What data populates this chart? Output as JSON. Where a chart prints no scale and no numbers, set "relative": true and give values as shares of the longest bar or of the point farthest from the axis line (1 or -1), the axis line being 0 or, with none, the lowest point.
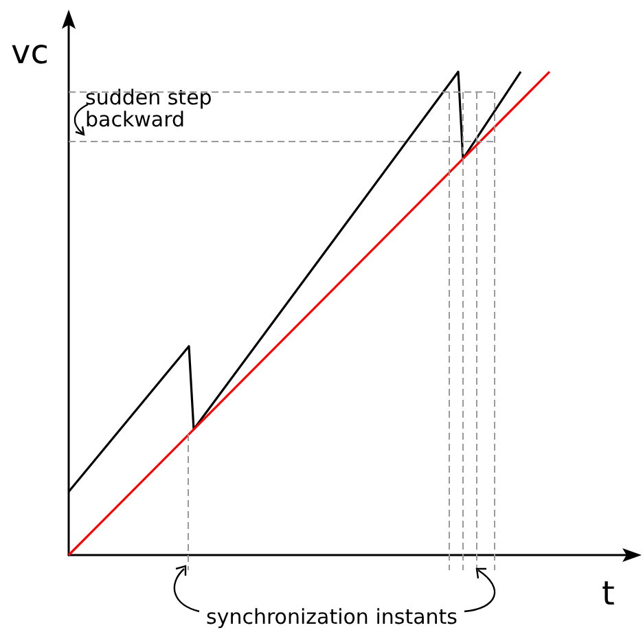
{
  "chart_data": {
    "type": "line",
    "relative": true,
    "xlabel": "t",
    "ylabel": "vc",
    "categories": [
      null,
      null,
      null,
      null,
      null,
      null,
      null,
      null,
      null,
      null,
      null,
      null,
      null,
      null,
      null,
      null,
      null,
      null,
      null,
      null,
      null,
      null,
      null,
      null,
      null,
      null,
      null,
      null,
      null,
      null,
      null,
      null,
      null,
      null,
      null,
      null,
      null,
      null,
      null,
      null,
      null,
      null,
      null,
      null,
      null,
      null,
      null,
      null,
      null,
      null,
      null,
      null,
      null,
      null,
      null,
      null,
      null,
      null,
      null,
      null,
      null,
      null,
      null,
      null,
      null,
      null,
      null,
      null,
      null,
      null,
      null,
      null,
      null,
      null,
      null,
      null,
      null,
      null,
      null,
      null,
      null,
      null,
      null,
      null,
      null,
      null,
      null,
      null,
      null,
      null,
      null,
      null,
      null,
      null,
      null,
      null,
      null,
      null,
      null,
      null,
      null,
      null,
      null,
      null,
      null,
      null,
      null,
      null,
      null,
      null,
      null,
      null,
      null,
      null,
      null,
      null,
      null,
      null,
      null
    ],
    "series": [
      {
        "color": "#000000",
        "values": [
          0.131,
          null,
          null,
          null,
          null,
          null,
          null,
          null,
          null,
          null,
          null,
          null,
          null,
          null,
          null,
          null,
          null,
          null,
          null,
          null,
          null,
          null,
          null,
          null,
          null,
          0.432,
          0.26,
          null,
          null,
          null,
          null,
          null,
          null,
          null,
          null,
          null,
          null,
          null,
          null,
          null,
          null,
          null,
          null,
          null,
          null,
          null,
          null,
          null,
          null,
          null,
          null,
          null,
          null,
          null,
          null,
          null,
          null,
          null,
          null,
          null,
          null,
          null,
          null,
          null,
          null,
          null,
          null,
          null,
          null,
          null,
          null,
          null,
          null,
          null,
          null,
          null,
          null,
          null,
          null,
          null,
          null,
          1,
          0.82,
          null,
          null,
          null,
          null,
          null,
          null,
          null,
          null,
          null,
          null,
          null,
          1,
          null,
          null,
          null,
          null,
          null,
          null,
          null,
          null,
          null,
          null,
          null,
          null,
          null,
          null,
          null,
          null,
          null,
          null,
          null,
          null,
          null,
          null,
          null,
          null
        ]
      },
      {
        "color": "#ff0000",
        "values": [
          0,
          null,
          null,
          null,
          null,
          null,
          null,
          null,
          null,
          null,
          null,
          null,
          null,
          null,
          null,
          null,
          null,
          null,
          null,
          null,
          null,
          null,
          null,
          null,
          null,
          null,
          null,
          null,
          null,
          null,
          null,
          null,
          null,
          null,
          null,
          null,
          null,
          null,
          null,
          null,
          null,
          null,
          null,
          null,
          null,
          null,
          null,
          null,
          null,
          null,
          null,
          null,
          null,
          null,
          null,
          null,
          null,
          null,
          null,
          null,
          null,
          null,
          null,
          null,
          null,
          null,
          null,
          null,
          null,
          null,
          null,
          null,
          null,
          null,
          null,
          null,
          null,
          null,
          null,
          null,
          null,
          null,
          null,
          null,
          null,
          null,
          null,
          null,
          null,
          null,
          null,
          null,
          null,
          null,
          null,
          null,
          null,
          null,
          null,
          null,
          1,
          null,
          null,
          null,
          null,
          null,
          null,
          null,
          null,
          null,
          null,
          null,
          null,
          null,
          null,
          null,
          null,
          null,
          null
        ]
      }
    ],
    "annotations": [
      "sudden step\nbackward",
      "synchronization instants"
    ],
    "grid": false,
    "marker": "none",
    "line_style": "solid"
  }
}
